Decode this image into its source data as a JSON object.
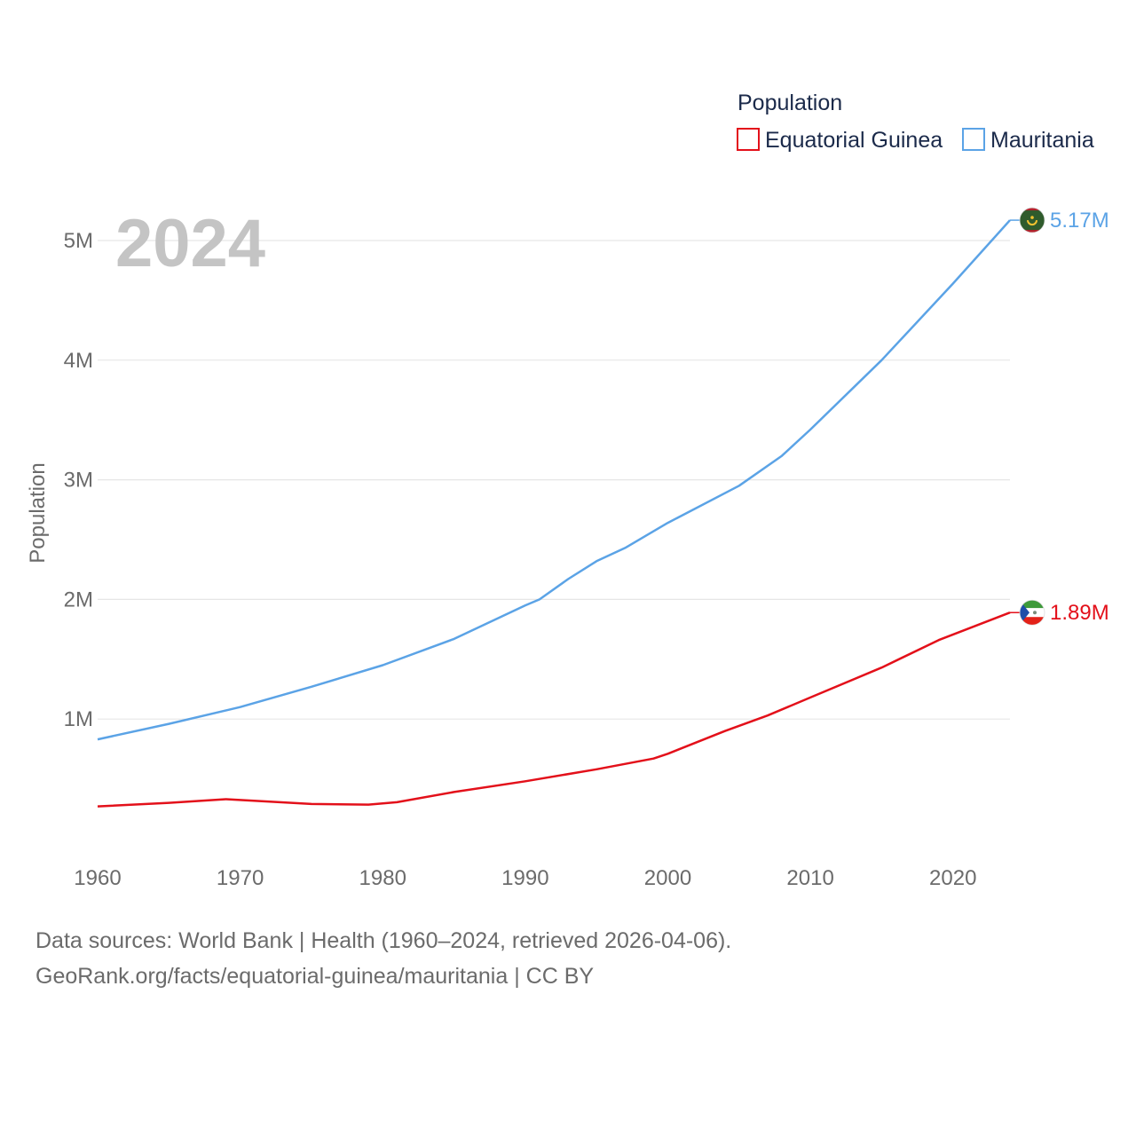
{
  "chart_data": {
    "type": "line",
    "year_display": "2024",
    "ylabel": "Population",
    "xlabel": "",
    "xlim": [
      1960,
      2024
    ],
    "ylim": [
      0,
      5200000
    ],
    "x_ticks": [
      1960,
      1970,
      1980,
      1990,
      2000,
      2010,
      2020
    ],
    "x_tick_labels": [
      "1960",
      "1970",
      "1980",
      "1990",
      "2000",
      "2010",
      "2020"
    ],
    "y_ticks": [
      1000000,
      2000000,
      3000000,
      4000000,
      5000000
    ],
    "y_tick_labels": [
      "1M",
      "2M",
      "3M",
      "4M",
      "5M"
    ],
    "grid": true,
    "legend": {
      "title": "Population",
      "position": "top-right",
      "items": [
        {
          "name": "Equatorial Guinea",
          "color": "#e3101a"
        },
        {
          "name": "Mauritania",
          "color": "#5ba3e6"
        }
      ]
    },
    "series": [
      {
        "name": "Equatorial Guinea",
        "color": "#e3101a",
        "end_label": "1.89M",
        "flag_icon": "equatorial-guinea-flag-icon",
        "x": [
          1960,
          1965,
          1969,
          1975,
          1979,
          1981,
          1985,
          1990,
          1995,
          1999,
          2000,
          2004,
          2007,
          2010,
          2015,
          2019,
          2024
        ],
        "values": [
          270000,
          300000,
          330000,
          290000,
          285000,
          305000,
          390000,
          480000,
          580000,
          670000,
          710000,
          900000,
          1030000,
          1180000,
          1430000,
          1660000,
          1890000
        ]
      },
      {
        "name": "Mauritania",
        "color": "#5ba3e6",
        "end_label": "5.17M",
        "flag_icon": "mauritania-flag-icon",
        "x": [
          1960,
          1965,
          1970,
          1975,
          1980,
          1985,
          1990,
          1991,
          1993,
          1995,
          1997,
          2000,
          2005,
          2008,
          2010,
          2015,
          2020,
          2024
        ],
        "values": [
          830000,
          960000,
          1100000,
          1270000,
          1450000,
          1670000,
          1950000,
          2000000,
          2170000,
          2320000,
          2430000,
          2640000,
          2950000,
          3200000,
          3420000,
          4000000,
          4640000,
          5170000
        ]
      }
    ]
  },
  "footer": {
    "source_line": "Data sources: World Bank | Health (1960–2024, retrieved 2026-04-06).",
    "url_line": "GeoRank.org/facts/equatorial-guinea/mauritania | CC BY"
  }
}
